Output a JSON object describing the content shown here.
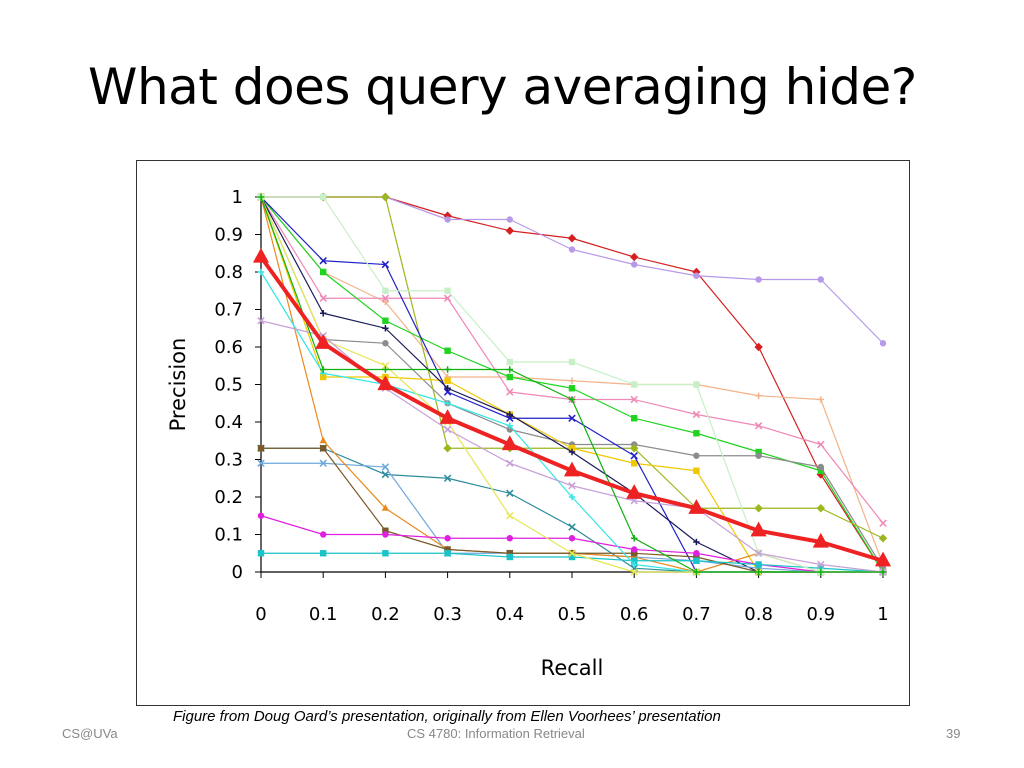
{
  "slide": {
    "title": "What does query averaging hide?",
    "caption": "Figure from Doug Oard’s presentation, originally from Ellen Voorhees’ presentation",
    "footer_left": "CS@UVa",
    "footer_center": "CS 4780: Information Retrieval",
    "footer_right": "39"
  },
  "chart_data": {
    "type": "line",
    "title": "",
    "xlabel": "Recall",
    "ylabel": "Precision",
    "x": [
      0,
      0.1,
      0.2,
      0.3,
      0.4,
      0.5,
      0.6,
      0.7,
      0.8,
      0.9,
      1
    ],
    "x_tick_labels": [
      "0",
      "0.1",
      "0.2",
      "0.3",
      "0.4",
      "0.5",
      "0.6",
      "0.7",
      "0.8",
      "0.9",
      "1"
    ],
    "y_tick_labels": [
      "0",
      "0.1",
      "0.2",
      "0.3",
      "0.4",
      "0.5",
      "0.6",
      "0.7",
      "0.8",
      "0.9",
      "1"
    ],
    "xlim": [
      0,
      1
    ],
    "ylim": [
      0,
      1
    ],
    "grid": false,
    "legend": "none",
    "series": [
      {
        "color": "#d42020",
        "marker": "diamond",
        "values": [
          1.0,
          1.0,
          1.0,
          0.95,
          0.91,
          0.89,
          0.84,
          0.8,
          0.6,
          0.26,
          0.0
        ]
      },
      {
        "color": "#b899e8",
        "marker": "circle",
        "values": [
          1.0,
          1.0,
          1.0,
          0.94,
          0.94,
          0.86,
          0.82,
          0.79,
          0.78,
          0.78,
          0.61
        ]
      },
      {
        "color": "#f2b38a",
        "marker": "plus",
        "values": [
          1.0,
          0.8,
          0.72,
          0.52,
          0.52,
          0.51,
          0.5,
          0.5,
          0.47,
          0.46,
          0.02
        ]
      },
      {
        "color": "#f088b8",
        "marker": "x",
        "values": [
          1.0,
          0.73,
          0.73,
          0.73,
          0.48,
          0.46,
          0.46,
          0.42,
          0.39,
          0.34,
          0.13
        ]
      },
      {
        "color": "#1fd31f",
        "marker": "square",
        "values": [
          1.0,
          0.8,
          0.67,
          0.59,
          0.52,
          0.49,
          0.41,
          0.37,
          0.32,
          0.27,
          0.0
        ]
      },
      {
        "color": "#8c8c8c",
        "marker": "circle",
        "values": [
          1.0,
          0.62,
          0.61,
          0.45,
          0.38,
          0.34,
          0.34,
          0.31,
          0.31,
          0.28,
          0.01
        ]
      },
      {
        "color": "#9ab81e",
        "marker": "diamond",
        "values": [
          1.0,
          1.0,
          1.0,
          0.33,
          0.33,
          0.33,
          0.33,
          0.17,
          0.17,
          0.17,
          0.09
        ]
      },
      {
        "color": "#f0c800",
        "marker": "square",
        "values": [
          1.0,
          0.52,
          0.52,
          0.51,
          0.42,
          0.33,
          0.29,
          0.27,
          0.0,
          0.0,
          0.0
        ]
      },
      {
        "color": "#2020c8",
        "marker": "x",
        "values": [
          1.0,
          0.83,
          0.82,
          0.48,
          0.41,
          0.41,
          0.31,
          0.0,
          0.0,
          0.0,
          0.0
        ]
      },
      {
        "color": "#1a1a5a",
        "marker": "plus",
        "values": [
          1.0,
          0.69,
          0.65,
          0.49,
          0.42,
          0.32,
          0.21,
          0.08,
          0.0,
          0.0,
          0.0
        ]
      },
      {
        "color": "#2c8c9c",
        "marker": "x",
        "values": [
          0.33,
          0.33,
          0.26,
          0.25,
          0.21,
          0.12,
          0.01,
          0.0,
          0.0,
          0.0,
          0.0
        ]
      },
      {
        "color": "#6fa8dc",
        "marker": "x",
        "values": [
          0.29,
          0.29,
          0.28,
          0.05,
          0.05,
          0.05,
          0.04,
          0.03,
          0.01,
          0.0,
          0.0
        ]
      },
      {
        "color": "#e88a1e",
        "marker": "triangle",
        "values": [
          1.0,
          0.35,
          0.17,
          0.06,
          0.05,
          0.05,
          0.04,
          0.0,
          0.05,
          0.0,
          0.0
        ]
      },
      {
        "color": "#7a5a2a",
        "marker": "square",
        "values": [
          0.33,
          0.33,
          0.11,
          0.06,
          0.05,
          0.05,
          0.05,
          0.04,
          0.0,
          0.0,
          0.0
        ]
      },
      {
        "color": "#e020e0",
        "marker": "circle",
        "values": [
          0.15,
          0.1,
          0.1,
          0.09,
          0.09,
          0.09,
          0.06,
          0.05,
          0.02,
          0.0,
          0.0
        ]
      },
      {
        "color": "#19c3c8",
        "marker": "square",
        "values": [
          0.05,
          0.05,
          0.05,
          0.05,
          0.04,
          0.04,
          0.03,
          0.03,
          0.02,
          0.01,
          0.0
        ]
      },
      {
        "color": "#33e6e6",
        "marker": "plus",
        "values": [
          0.8,
          0.53,
          0.5,
          0.45,
          0.39,
          0.2,
          0.02,
          0.0,
          0.0,
          0.0,
          0.0
        ]
      },
      {
        "color": "#e6e655",
        "marker": "x",
        "values": [
          1.0,
          0.62,
          0.55,
          0.4,
          0.15,
          0.05,
          0.0,
          0.0,
          0.0,
          0.0,
          0.0
        ]
      },
      {
        "color": "#c8f0c8",
        "marker": "square",
        "values": [
          1.0,
          1.0,
          0.75,
          0.75,
          0.56,
          0.56,
          0.5,
          0.5,
          0.05,
          0.0,
          0.0
        ]
      },
      {
        "color": "#c8a0d8",
        "marker": "x",
        "values": [
          0.67,
          0.63,
          0.49,
          0.38,
          0.29,
          0.23,
          0.19,
          0.17,
          0.05,
          0.02,
          0.0
        ]
      },
      {
        "color": "#10b010",
        "marker": "plus",
        "values": [
          1.0,
          0.54,
          0.54,
          0.54,
          0.54,
          0.46,
          0.09,
          0.0,
          0.0,
          0.0,
          0.0
        ]
      },
      {
        "color": "#ee2222",
        "marker": "triangle",
        "bold": true,
        "values": [
          0.84,
          0.61,
          0.5,
          0.41,
          0.34,
          0.27,
          0.21,
          0.17,
          0.11,
          0.08,
          0.03
        ]
      }
    ]
  }
}
